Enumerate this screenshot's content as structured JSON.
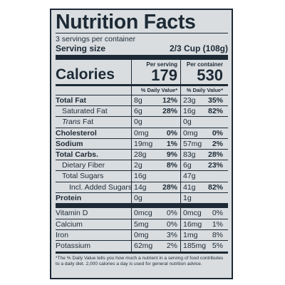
{
  "title": "Nutrition Facts",
  "servings_per_container": "3 servings per container",
  "serving_size_label": "Serving size",
  "serving_size_value": "2/3 Cup (108g)",
  "per_serving_label": "Per serving",
  "per_container_label": "Per container",
  "calories_label": "Calories",
  "calories_per_serving": "179",
  "calories_per_container": "530",
  "daily_value_header": "% Daily Value*",
  "nutrients": [
    {
      "name": "Total Fat",
      "serv_amt": "8g",
      "serv_dv": "12%",
      "cont_amt": "23g",
      "cont_dv": "35%"
    },
    {
      "name": "Saturated Fat",
      "serv_amt": "6g",
      "serv_dv": "28%",
      "cont_amt": "16g",
      "cont_dv": "82%"
    },
    {
      "name_italic": "Trans",
      "name_rest": " Fat",
      "serv_amt": "0g",
      "serv_dv": "",
      "cont_amt": "0g",
      "cont_dv": ""
    },
    {
      "name": "Cholesterol",
      "serv_amt": "0mg",
      "serv_dv": "0%",
      "cont_amt": "0mg",
      "cont_dv": "0%"
    },
    {
      "name": "Sodium",
      "serv_amt": "19mg",
      "serv_dv": "1%",
      "cont_amt": "57mg",
      "cont_dv": "2%"
    },
    {
      "name": "Total Carbs.",
      "serv_amt": "28g",
      "serv_dv": "9%",
      "cont_amt": "83g",
      "cont_dv": "28%"
    },
    {
      "name": "Dietary Fiber",
      "serv_amt": "2g",
      "serv_dv": "8%",
      "cont_amt": "6g",
      "cont_dv": "23%"
    },
    {
      "name": "Total Sugars",
      "serv_amt": "16g",
      "serv_dv": "",
      "cont_amt": "47g",
      "cont_dv": ""
    },
    {
      "name": "Incl. Added Sugars",
      "serv_amt": "14g",
      "serv_dv": "28%",
      "cont_amt": "41g",
      "cont_dv": "82%"
    },
    {
      "name": "Protein",
      "serv_amt": "0g",
      "serv_dv": "",
      "cont_amt": "1g",
      "cont_dv": ""
    }
  ],
  "vitamins": [
    {
      "name": "Vitamin D",
      "serv_amt": "0mcg",
      "serv_dv": "0%",
      "cont_amt": "0mcg",
      "cont_dv": "0%"
    },
    {
      "name": "Calcium",
      "serv_amt": "5mg",
      "serv_dv": "0%",
      "cont_amt": "16mg",
      "cont_dv": "1%"
    },
    {
      "name": "Iron",
      "serv_amt": "0mg",
      "serv_dv": "3%",
      "cont_amt": "1mg",
      "cont_dv": "8%"
    },
    {
      "name": "Potassium",
      "serv_amt": "62mg",
      "serv_dv": "2%",
      "cont_amt": "185mg",
      "cont_dv": "5%"
    }
  ],
  "footnote": "*The % Daily Value tells you how much a nutrient in a serving of food contributes to a daily diet. 2,000 calories a day is used for general nutrition advice."
}
